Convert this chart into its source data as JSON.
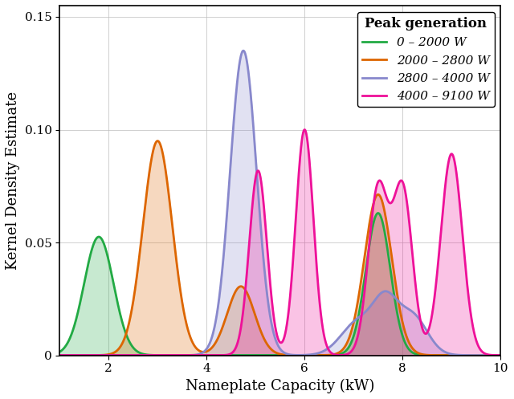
{
  "xlabel": "Nameplate Capacity (kW)",
  "ylabel": "Kernel Density Estimate",
  "xlim": [
    1.0,
    10.0
  ],
  "ylim": [
    0,
    0.155
  ],
  "yticks": [
    0,
    0.05,
    0.1,
    0.15
  ],
  "xticks": [
    2,
    4,
    6,
    8,
    10
  ],
  "legend_title": "Peak generation",
  "series": [
    {
      "label": "0 – 2000 W",
      "color": "#22aa44",
      "fill_alpha": 0.25,
      "components": [
        {
          "mean": 1.8,
          "weight": 0.5,
          "bw": 0.3
        },
        {
          "mean": 7.5,
          "weight": 0.5,
          "bw": 0.25
        }
      ],
      "target_peak": 0.063
    },
    {
      "label": "2000 – 2800 W",
      "color": "#dd6600",
      "fill_alpha": 0.25,
      "components": [
        {
          "mean": 3.0,
          "weight": 0.5,
          "bw": 0.3
        },
        {
          "mean": 7.5,
          "weight": 0.35,
          "bw": 0.28
        },
        {
          "mean": 4.7,
          "weight": 0.15,
          "bw": 0.28
        }
      ],
      "target_peak": 0.095
    },
    {
      "label": "2800 – 4000 W",
      "color": "#8888cc",
      "fill_alpha": 0.25,
      "components": [
        {
          "mean": 4.75,
          "weight": 0.7,
          "bw": 0.27
        },
        {
          "mean": 7.1,
          "weight": 0.1,
          "bw": 0.35
        },
        {
          "mean": 7.65,
          "weight": 0.1,
          "bw": 0.25
        },
        {
          "mean": 8.2,
          "weight": 0.1,
          "bw": 0.3
        }
      ],
      "target_peak": 0.135
    },
    {
      "label": "4000 – 9100 W",
      "color": "#ee1199",
      "fill_alpha": 0.25,
      "components": [
        {
          "mean": 5.05,
          "weight": 0.18,
          "bw": 0.18
        },
        {
          "mean": 6.0,
          "weight": 0.22,
          "bw": 0.18
        },
        {
          "mean": 7.5,
          "weight": 0.18,
          "bw": 0.2
        },
        {
          "mean": 8.0,
          "weight": 0.18,
          "bw": 0.2
        },
        {
          "mean": 9.0,
          "weight": 0.24,
          "bw": 0.22
        }
      ],
      "target_peak": 0.1
    }
  ],
  "background_color": "#ffffff",
  "grid_color": "#bbbbbb",
  "linewidth": 2.0
}
